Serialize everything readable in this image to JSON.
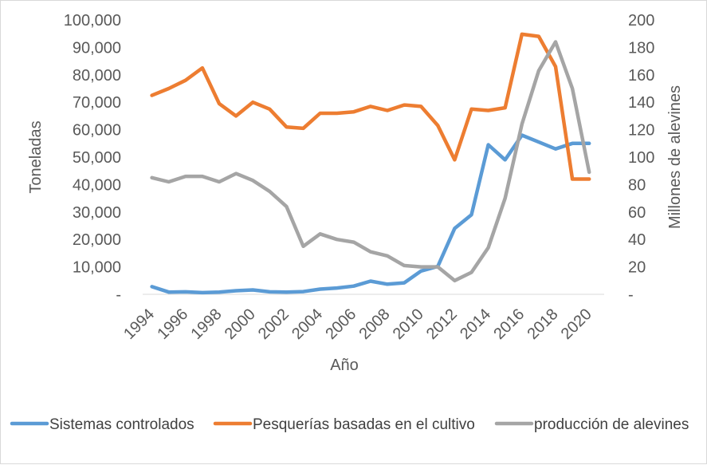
{
  "chart_data": {
    "type": "line",
    "title": "",
    "xlabel": "Año",
    "ylabel_left": "Toneladas",
    "ylabel_right": "Millones de alevines",
    "x": [
      1994,
      1995,
      1996,
      1997,
      1998,
      1999,
      2000,
      2001,
      2002,
      2003,
      2004,
      2005,
      2006,
      2007,
      2008,
      2009,
      2010,
      2011,
      2012,
      2013,
      2014,
      2015,
      2016,
      2017,
      2018,
      2019,
      2020
    ],
    "x_tick_labels": [
      "1994",
      "1996",
      "1998",
      "2000",
      "2002",
      "2004",
      "2006",
      "2008",
      "2010",
      "2012",
      "2014",
      "2016",
      "2018",
      "2020"
    ],
    "ylim_left": [
      0,
      100000
    ],
    "ylim_right": [
      0,
      200
    ],
    "y_left_tick_labels": [
      "-",
      "10,000",
      "20,000",
      "30,000",
      "40,000",
      "50,000",
      "60,000",
      "70,000",
      "80,000",
      "90,000",
      "100,000"
    ],
    "y_right_tick_labels": [
      "-",
      "20",
      "40",
      "60",
      "80",
      "100",
      "120",
      "140",
      "160",
      "180",
      "200"
    ],
    "grid": false,
    "legend_position": "bottom",
    "series": [
      {
        "name": "Sistemas controlados",
        "axis": "left",
        "color": "#5b9bd5",
        "values": [
          2800,
          800,
          900,
          600,
          800,
          1300,
          1600,
          900,
          800,
          1000,
          1900,
          2300,
          3000,
          4800,
          3700,
          4200,
          8500,
          10200,
          24000,
          29000,
          54500,
          49000,
          58000,
          55500,
          53000,
          55000,
          55000
        ]
      },
      {
        "name": "Pesquerías basadas en el cultivo",
        "axis": "left",
        "color": "#ed7d31",
        "values": [
          72500,
          75000,
          78000,
          82500,
          69500,
          65000,
          70000,
          67500,
          61000,
          60500,
          66000,
          66000,
          66500,
          68500,
          67000,
          69000,
          68500,
          61500,
          49000,
          67500,
          67000,
          68000,
          94800,
          94000,
          83000,
          42000,
          42000
        ]
      },
      {
        "name": "producción de alevines",
        "axis": "right",
        "color": "#a5a5a5",
        "values": [
          85,
          82,
          86,
          86,
          82,
          88,
          83,
          75,
          64,
          35,
          44,
          40,
          38,
          31,
          28,
          21,
          20,
          20,
          10,
          16,
          34,
          70,
          124,
          163,
          184,
          150,
          89
        ]
      }
    ]
  }
}
